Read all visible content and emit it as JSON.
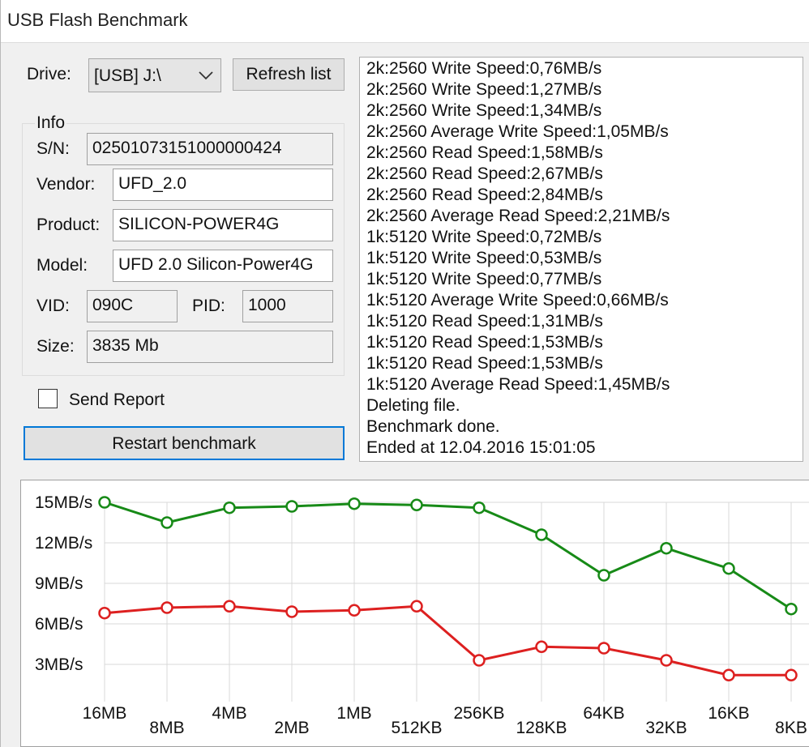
{
  "window": {
    "title": "USB Flash Benchmark"
  },
  "drive": {
    "label": "Drive:",
    "selected": "[USB] J:\\",
    "refresh_button": "Refresh list"
  },
  "info": {
    "group_label": "Info",
    "sn_label": "S/N:",
    "sn_value": "02501073151000000424",
    "vendor_label": "Vendor:",
    "vendor_value": "UFD_2.0",
    "product_label": "Product:",
    "product_value": "SILICON-POWER4G",
    "model_label": "Model:",
    "model_value": "UFD 2.0 Silicon-Power4G",
    "vid_label": "VID:",
    "vid_value": "090C",
    "pid_label": "PID:",
    "pid_value": "1000",
    "size_label": "Size:",
    "size_value": "3835 Mb"
  },
  "send_report": {
    "label": "Send Report",
    "checked": false
  },
  "restart_button": "Restart benchmark",
  "log": [
    "2k:2560 Write Speed:0,76MB/s",
    "2k:2560 Write Speed:1,27MB/s",
    "2k:2560 Write Speed:1,34MB/s",
    "2k:2560 Average Write Speed:1,05MB/s",
    "2k:2560 Read Speed:1,58MB/s",
    "2k:2560 Read Speed:2,67MB/s",
    "2k:2560 Read Speed:2,84MB/s",
    "2k:2560 Average Read Speed:2,21MB/s",
    "1k:5120 Write Speed:0,72MB/s",
    "1k:5120 Write Speed:0,53MB/s",
    "1k:5120 Write Speed:0,77MB/s",
    "1k:5120 Average Write Speed:0,66MB/s",
    "1k:5120 Read Speed:1,31MB/s",
    "1k:5120 Read Speed:1,53MB/s",
    "1k:5120 Read Speed:1,53MB/s",
    "1k:5120 Average Read Speed:1,45MB/s",
    "Deleting file.",
    "Benchmark done.",
    "Ended at 12.04.2016 15:01:05"
  ],
  "chart_data": {
    "type": "line",
    "categories": [
      "16MB",
      "8MB",
      "4MB",
      "2MB",
      "1MB",
      "512KB",
      "256KB",
      "128KB",
      "64KB",
      "32KB",
      "16KB",
      "8KB"
    ],
    "series": [
      {
        "color": "#178a17",
        "values": [
          15.0,
          13.5,
          14.6,
          14.7,
          14.9,
          14.8,
          14.6,
          12.6,
          9.6,
          11.6,
          10.1,
          7.1
        ]
      },
      {
        "color": "#dd2020",
        "values": [
          6.8,
          7.2,
          7.3,
          6.9,
          7.0,
          7.3,
          3.3,
          4.3,
          4.2,
          3.3,
          2.2,
          2.2
        ]
      }
    ],
    "y_ticks": [
      "15MB/s",
      "12MB/s",
      "9MB/s",
      "6MB/s",
      "3MB/s"
    ],
    "y_tick_values": [
      15,
      12,
      9,
      6,
      3
    ],
    "ylim": [
      0,
      15
    ],
    "grid": true
  }
}
